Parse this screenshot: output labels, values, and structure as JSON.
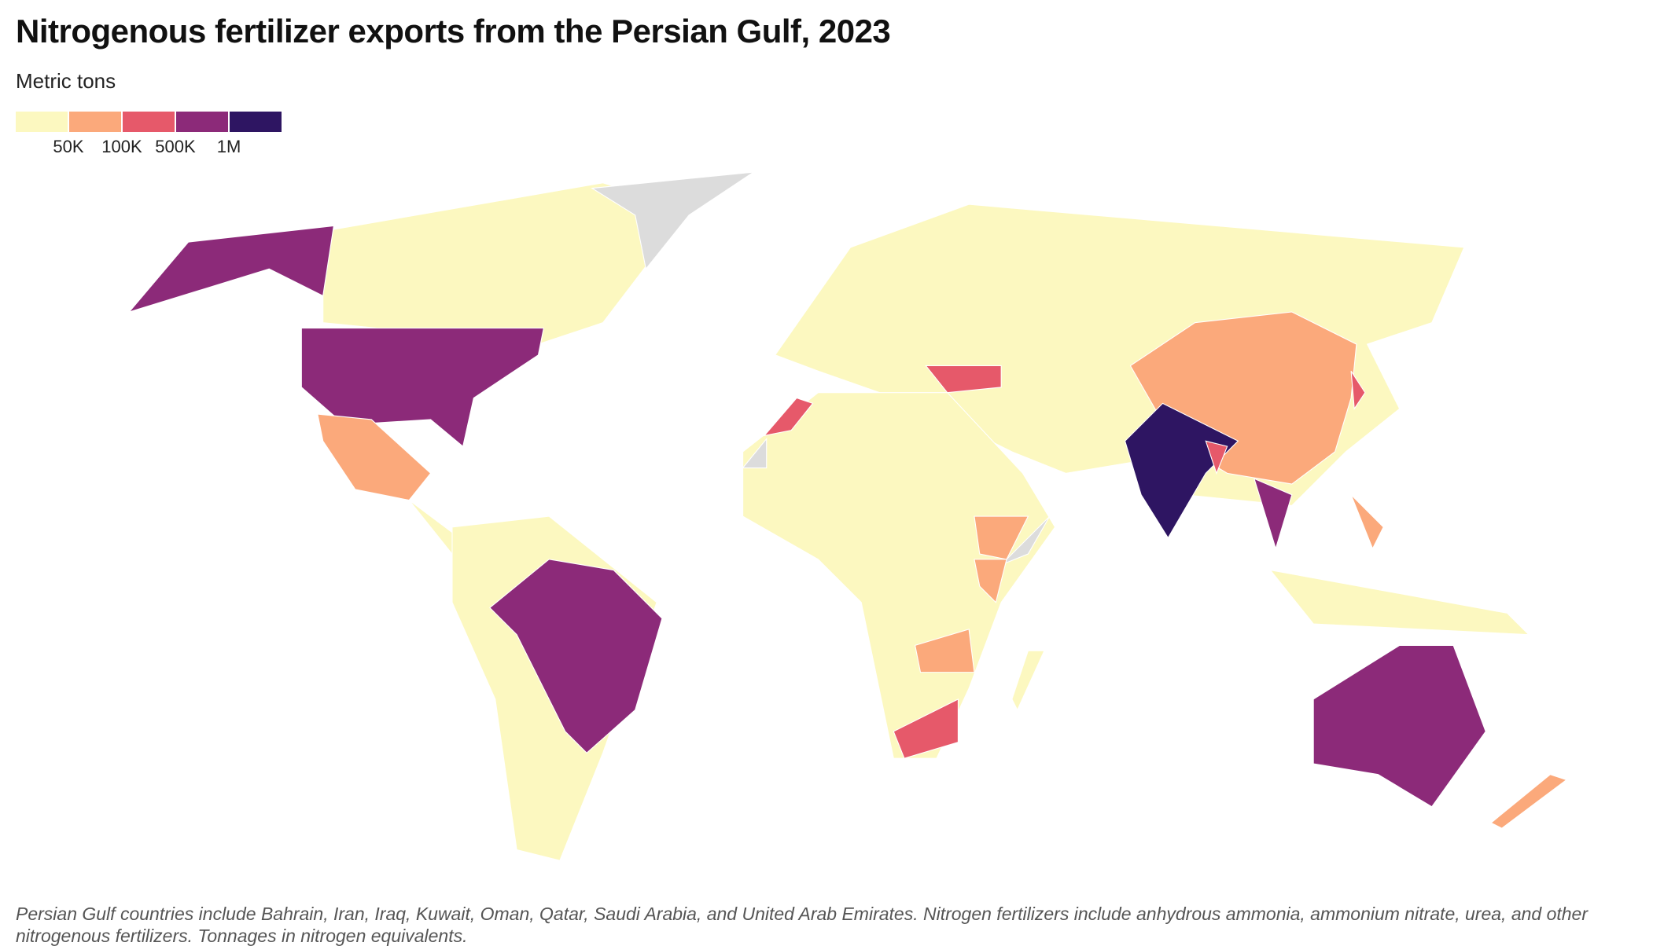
{
  "header": {
    "title": "Nitrogenous fertilizer exports from the Persian Gulf, 2023",
    "subtitle": "Metric tons"
  },
  "legend": {
    "colors": [
      "#fcf8c0",
      "#fba97b",
      "#e6596a",
      "#8c2a79",
      "#2e1562"
    ],
    "labels": [
      "50K",
      "100K",
      "500K",
      "1M"
    ]
  },
  "note": [
    "Persian Gulf countries include Bahrain, Iran, Iraq, Kuwait, Oman, Qatar, Saudi Arabia, and United Arab Emirates. Nitrogen fertilizers include anhydrous ammonia, ammonium nitrate, urea, and other",
    "nitrogenous fertilizers. Tonnages in nitrogen equivalents."
  ]
}
